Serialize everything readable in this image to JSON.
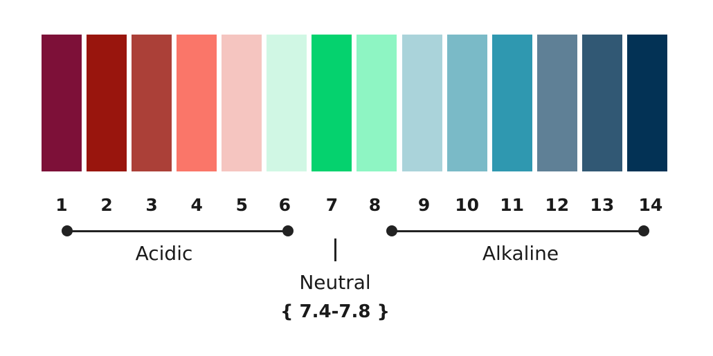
{
  "scale": {
    "levels": [
      {
        "label": "1",
        "color": "#7d1038"
      },
      {
        "label": "2",
        "color": "#99150d"
      },
      {
        "label": "3",
        "color": "#ab4038"
      },
      {
        "label": "4",
        "color": "#fa7669"
      },
      {
        "label": "5",
        "color": "#f5c5c0"
      },
      {
        "label": "6",
        "color": "#d0f7e4"
      },
      {
        "label": "7",
        "color": "#05d26e"
      },
      {
        "label": "8",
        "color": "#8ef5c3"
      },
      {
        "label": "9",
        "color": "#aad3da"
      },
      {
        "label": "10",
        "color": "#7abac7"
      },
      {
        "label": "11",
        "color": "#2f98b0"
      },
      {
        "label": "12",
        "color": "#5f8096"
      },
      {
        "label": "13",
        "color": "#315874"
      },
      {
        "label": "14",
        "color": "#033255"
      }
    ]
  },
  "ranges": {
    "acidic": "Acidic",
    "neutral": "Neutral",
    "neutral_range": "{ 7.4-7.8 }",
    "alkaline": "Alkaline"
  }
}
